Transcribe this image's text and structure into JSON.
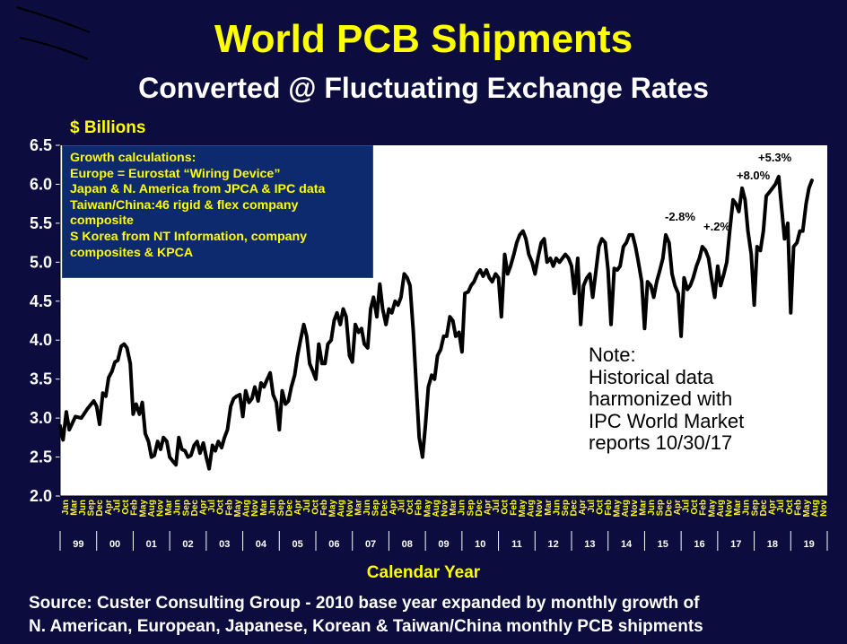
{
  "header": {
    "title": "World PCB Shipments",
    "subtitle": "Converted @ Fluctuating Exchange Rates"
  },
  "chart_data": {
    "type": "line",
    "title": "World PCB Shipments",
    "subtitle": "Converted @ Fluctuating Exchange Rates",
    "ylabel": "$ Billions",
    "xlabel": "Calendar Year",
    "ylim": [
      2.0,
      6.5
    ],
    "yticks": [
      "6.5",
      "6.0",
      "5.5",
      "5.0",
      "4.5",
      "4.0",
      "3.5",
      "3.0",
      "2.5",
      "2.0"
    ],
    "grid": false,
    "x_start": "Jan 1999",
    "x_end": "Dec 2019",
    "month_tick_labels": [
      "Jan",
      "Mar",
      "Jun",
      "Sep",
      "Dec",
      "Apr",
      "Jul",
      "Oct",
      "Feb",
      "May",
      "Aug",
      "Nov",
      "Mar",
      "Jun",
      "Sep",
      "Dec",
      "Apr",
      "Jul",
      "Oct",
      "Feb",
      "May",
      "Aug",
      "Nov",
      "Mar",
      "Jun",
      "Sep",
      "Dec",
      "Apr",
      "Jul",
      "Oct",
      "Feb",
      "May",
      "Aug",
      "Nov",
      "Mar",
      "Jun",
      "Sep",
      "Dec",
      "Apr",
      "Jul",
      "Oct",
      "Feb",
      "May",
      "Aug",
      "Nov",
      "Mar",
      "Jun",
      "Sep",
      "Dec",
      "Apr",
      "Jul",
      "Oct",
      "Feb",
      "May",
      "Aug",
      "Nov",
      "Mar",
      "Jun",
      "Sep",
      "Dec",
      "Apr",
      "Jul",
      "Oct",
      "Feb",
      "May",
      "Aug",
      "Nov",
      "Mar",
      "Jun",
      "Sep",
      "Dec",
      "Apr",
      "Jul",
      "Oct",
      "Feb",
      "May",
      "Aug",
      "Nov",
      "Mar",
      "Jun",
      "Sep",
      "Dec",
      "Apr",
      "Jul",
      "Oct",
      "Feb",
      "May",
      "Aug",
      "Nov"
    ],
    "year_labels": [
      "99",
      "00",
      "01",
      "02",
      "03",
      "04",
      "05",
      "06",
      "07",
      "08",
      "09",
      "10",
      "11",
      "12",
      "13",
      "14",
      "15",
      "16",
      "17",
      "18",
      "19"
    ],
    "annotations": [
      "-2.8%",
      "+.2%",
      "+8.0%",
      "+5.3%"
    ],
    "growth_box": [
      "Growth calculations:",
      "Europe = Eurostat “Wiring Device”",
      "Japan & N. America from JPCA & IPC data",
      "Taiwan/China:46 rigid & flex company",
      "composite",
      "S Korea  from NT Information, company",
      "composites & KPCA"
    ],
    "note": [
      "Note:",
      "Historical data",
      "harmonized with",
      "IPC World Market",
      "reports 10/30/17"
    ],
    "source": [
      "Source: Custer Consulting Group - 2010 base year expanded by monthly growth of",
      "N. American, European, Japanese, Korean & Taiwan/China monthly PCB shipments"
    ],
    "series": [
      {
        "points": [
          [
            1999.0,
            2.9
          ],
          [
            1999.08,
            2.72
          ],
          [
            1999.17,
            3.08
          ],
          [
            1999.25,
            2.85
          ],
          [
            1999.42,
            3.02
          ],
          [
            1999.58,
            3.0
          ],
          [
            1999.75,
            3.12
          ],
          [
            1999.92,
            3.22
          ],
          [
            2000.0,
            3.15
          ],
          [
            2000.08,
            2.92
          ],
          [
            2000.17,
            3.32
          ],
          [
            2000.25,
            3.28
          ],
          [
            2000.33,
            3.52
          ],
          [
            2000.42,
            3.6
          ],
          [
            2000.5,
            3.72
          ],
          [
            2000.58,
            3.74
          ],
          [
            2000.67,
            3.92
          ],
          [
            2000.75,
            3.95
          ],
          [
            2000.83,
            3.9
          ],
          [
            2000.92,
            3.7
          ],
          [
            2001.0,
            3.05
          ],
          [
            2001.08,
            3.18
          ],
          [
            2001.17,
            3.05
          ],
          [
            2001.25,
            3.2
          ],
          [
            2001.33,
            2.8
          ],
          [
            2001.42,
            2.7
          ],
          [
            2001.5,
            2.5
          ],
          [
            2001.58,
            2.52
          ],
          [
            2001.67,
            2.7
          ],
          [
            2001.75,
            2.6
          ],
          [
            2001.83,
            2.75
          ],
          [
            2001.92,
            2.7
          ],
          [
            2002.0,
            2.5
          ],
          [
            2002.08,
            2.45
          ],
          [
            2002.17,
            2.4
          ],
          [
            2002.25,
            2.75
          ],
          [
            2002.33,
            2.6
          ],
          [
            2002.42,
            2.58
          ],
          [
            2002.5,
            2.5
          ],
          [
            2002.58,
            2.52
          ],
          [
            2002.67,
            2.65
          ],
          [
            2002.75,
            2.7
          ],
          [
            2002.83,
            2.55
          ],
          [
            2002.92,
            2.68
          ],
          [
            2003.0,
            2.5
          ],
          [
            2003.08,
            2.35
          ],
          [
            2003.17,
            2.65
          ],
          [
            2003.25,
            2.58
          ],
          [
            2003.33,
            2.7
          ],
          [
            2003.42,
            2.62
          ],
          [
            2003.5,
            2.75
          ],
          [
            2003.58,
            2.85
          ],
          [
            2003.67,
            3.15
          ],
          [
            2003.75,
            3.25
          ],
          [
            2003.83,
            3.28
          ],
          [
            2003.92,
            3.3
          ],
          [
            2004.0,
            3.02
          ],
          [
            2004.08,
            3.35
          ],
          [
            2004.17,
            3.2
          ],
          [
            2004.25,
            3.25
          ],
          [
            2004.33,
            3.4
          ],
          [
            2004.42,
            3.22
          ],
          [
            2004.5,
            3.45
          ],
          [
            2004.58,
            3.4
          ],
          [
            2004.67,
            3.5
          ],
          [
            2004.75,
            3.58
          ],
          [
            2004.83,
            3.3
          ],
          [
            2004.92,
            3.2
          ],
          [
            2005.0,
            2.85
          ],
          [
            2005.08,
            3.35
          ],
          [
            2005.17,
            3.18
          ],
          [
            2005.25,
            3.22
          ],
          [
            2005.33,
            3.4
          ],
          [
            2005.42,
            3.55
          ],
          [
            2005.5,
            3.8
          ],
          [
            2005.58,
            4.0
          ],
          [
            2005.67,
            4.2
          ],
          [
            2005.75,
            4.05
          ],
          [
            2005.83,
            3.7
          ],
          [
            2005.92,
            3.6
          ],
          [
            2006.0,
            3.5
          ],
          [
            2006.08,
            3.95
          ],
          [
            2006.17,
            3.7
          ],
          [
            2006.25,
            3.7
          ],
          [
            2006.33,
            3.95
          ],
          [
            2006.42,
            4.0
          ],
          [
            2006.5,
            4.25
          ],
          [
            2006.58,
            4.35
          ],
          [
            2006.67,
            4.2
          ],
          [
            2006.75,
            4.4
          ],
          [
            2006.83,
            4.3
          ],
          [
            2006.92,
            3.8
          ],
          [
            2007.0,
            3.72
          ],
          [
            2007.08,
            4.2
          ],
          [
            2007.17,
            4.1
          ],
          [
            2007.25,
            4.15
          ],
          [
            2007.33,
            3.95
          ],
          [
            2007.42,
            3.9
          ],
          [
            2007.5,
            4.4
          ],
          [
            2007.58,
            4.55
          ],
          [
            2007.67,
            4.3
          ],
          [
            2007.75,
            4.72
          ],
          [
            2007.83,
            4.4
          ],
          [
            2007.92,
            4.2
          ],
          [
            2008.0,
            4.4
          ],
          [
            2008.08,
            4.35
          ],
          [
            2008.17,
            4.5
          ],
          [
            2008.25,
            4.45
          ],
          [
            2008.33,
            4.55
          ],
          [
            2008.42,
            4.85
          ],
          [
            2008.5,
            4.8
          ],
          [
            2008.58,
            4.7
          ],
          [
            2008.67,
            4.1
          ],
          [
            2008.75,
            3.4
          ],
          [
            2008.83,
            2.75
          ],
          [
            2008.92,
            2.5
          ],
          [
            2009.0,
            2.9
          ],
          [
            2009.08,
            3.4
          ],
          [
            2009.17,
            3.55
          ],
          [
            2009.25,
            3.5
          ],
          [
            2009.33,
            3.8
          ],
          [
            2009.42,
            3.88
          ],
          [
            2009.5,
            4.05
          ],
          [
            2009.58,
            4.05
          ],
          [
            2009.67,
            4.3
          ],
          [
            2009.75,
            4.25
          ],
          [
            2009.83,
            4.05
          ],
          [
            2009.92,
            4.1
          ],
          [
            2010.0,
            3.85
          ],
          [
            2010.08,
            4.6
          ],
          [
            2010.17,
            4.62
          ],
          [
            2010.25,
            4.7
          ],
          [
            2010.33,
            4.75
          ],
          [
            2010.42,
            4.85
          ],
          [
            2010.5,
            4.9
          ],
          [
            2010.58,
            4.82
          ],
          [
            2010.67,
            4.9
          ],
          [
            2010.75,
            4.8
          ],
          [
            2010.83,
            4.75
          ],
          [
            2010.92,
            4.85
          ],
          [
            2011.0,
            4.8
          ],
          [
            2011.08,
            4.3
          ],
          [
            2011.17,
            5.1
          ],
          [
            2011.25,
            4.85
          ],
          [
            2011.33,
            4.95
          ],
          [
            2011.42,
            5.1
          ],
          [
            2011.5,
            5.25
          ],
          [
            2011.58,
            5.35
          ],
          [
            2011.67,
            5.4
          ],
          [
            2011.75,
            5.3
          ],
          [
            2011.83,
            5.1
          ],
          [
            2011.92,
            5.0
          ],
          [
            2012.0,
            4.85
          ],
          [
            2012.08,
            5.05
          ],
          [
            2012.17,
            5.25
          ],
          [
            2012.25,
            5.3
          ],
          [
            2012.33,
            5.0
          ],
          [
            2012.42,
            5.05
          ],
          [
            2012.5,
            4.95
          ],
          [
            2012.58,
            5.05
          ],
          [
            2012.67,
            5.0
          ],
          [
            2012.75,
            5.05
          ],
          [
            2012.83,
            5.1
          ],
          [
            2012.92,
            5.05
          ],
          [
            2013.0,
            4.95
          ],
          [
            2013.08,
            4.6
          ],
          [
            2013.17,
            5.05
          ],
          [
            2013.25,
            4.2
          ],
          [
            2013.33,
            4.7
          ],
          [
            2013.42,
            4.8
          ],
          [
            2013.5,
            4.85
          ],
          [
            2013.58,
            4.55
          ],
          [
            2013.67,
            4.9
          ],
          [
            2013.75,
            5.2
          ],
          [
            2013.83,
            5.3
          ],
          [
            2013.92,
            5.25
          ],
          [
            2014.0,
            4.9
          ],
          [
            2014.08,
            4.2
          ],
          [
            2014.17,
            4.92
          ],
          [
            2014.25,
            4.9
          ],
          [
            2014.33,
            4.95
          ],
          [
            2014.42,
            5.2
          ],
          [
            2014.5,
            5.25
          ],
          [
            2014.58,
            5.35
          ],
          [
            2014.67,
            5.35
          ],
          [
            2014.75,
            5.2
          ],
          [
            2014.83,
            5.0
          ],
          [
            2014.92,
            4.75
          ],
          [
            2015.0,
            4.15
          ],
          [
            2015.08,
            4.75
          ],
          [
            2015.17,
            4.7
          ],
          [
            2015.25,
            4.55
          ],
          [
            2015.33,
            4.75
          ],
          [
            2015.42,
            4.9
          ],
          [
            2015.5,
            5.05
          ],
          [
            2015.58,
            5.35
          ],
          [
            2015.67,
            5.25
          ],
          [
            2015.75,
            4.85
          ],
          [
            2015.83,
            4.7
          ],
          [
            2015.92,
            4.6
          ],
          [
            2016.0,
            4.05
          ],
          [
            2016.08,
            4.8
          ],
          [
            2016.17,
            4.65
          ],
          [
            2016.25,
            4.7
          ],
          [
            2016.33,
            4.8
          ],
          [
            2016.42,
            4.95
          ],
          [
            2016.5,
            5.05
          ],
          [
            2016.58,
            5.2
          ],
          [
            2016.67,
            5.15
          ],
          [
            2016.75,
            5.05
          ],
          [
            2016.83,
            4.8
          ],
          [
            2016.92,
            4.55
          ],
          [
            2017.0,
            4.95
          ],
          [
            2017.08,
            4.7
          ],
          [
            2017.17,
            4.85
          ],
          [
            2017.25,
            5.0
          ],
          [
            2017.33,
            5.4
          ],
          [
            2017.42,
            5.8
          ],
          [
            2017.5,
            5.75
          ],
          [
            2017.58,
            5.65
          ],
          [
            2017.67,
            5.95
          ],
          [
            2017.75,
            5.8
          ],
          [
            2017.83,
            5.4
          ],
          [
            2017.92,
            5.1
          ],
          [
            2018.0,
            4.45
          ],
          [
            2018.08,
            5.2
          ],
          [
            2018.17,
            5.15
          ],
          [
            2018.25,
            5.4
          ],
          [
            2018.33,
            5.85
          ],
          [
            2018.42,
            5.9
          ],
          [
            2018.5,
            5.95
          ],
          [
            2018.58,
            6.0
          ],
          [
            2018.67,
            6.1
          ],
          [
            2018.75,
            5.7
          ],
          [
            2018.83,
            5.3
          ],
          [
            2018.92,
            5.5
          ],
          [
            2019.0,
            4.35
          ],
          [
            2019.08,
            5.2
          ],
          [
            2019.17,
            5.25
          ],
          [
            2019.25,
            5.4
          ],
          [
            2019.33,
            5.4
          ],
          [
            2019.42,
            5.75
          ],
          [
            2019.5,
            5.95
          ],
          [
            2019.58,
            6.05
          ]
        ]
      }
    ]
  }
}
